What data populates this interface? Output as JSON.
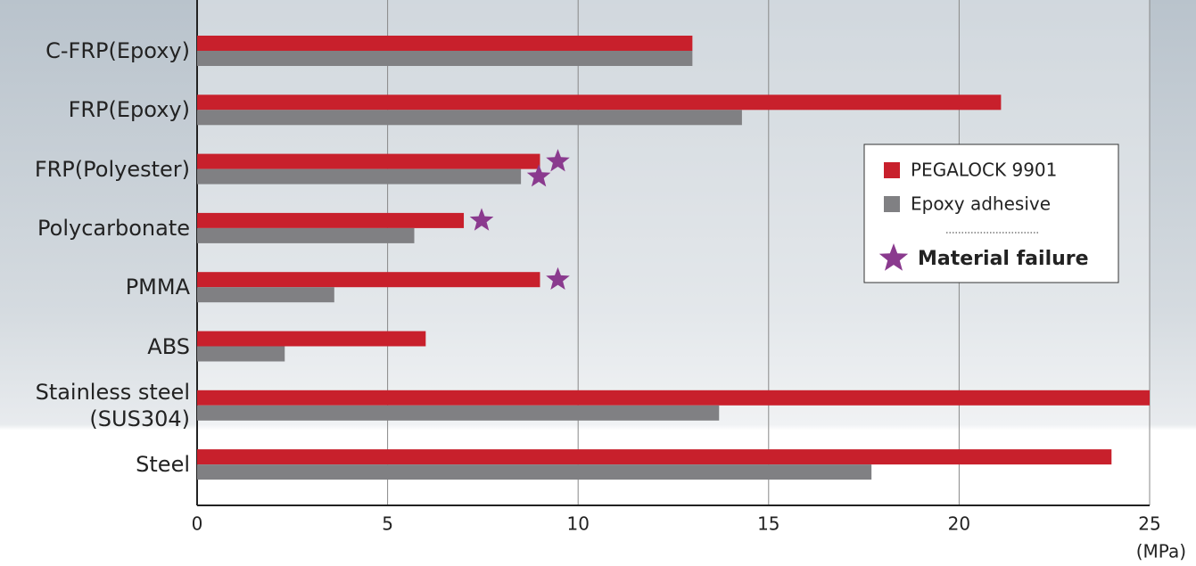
{
  "chart_data": {
    "type": "bar",
    "orientation": "horizontal",
    "categories": [
      "C-FRP(Epoxy)",
      "FRP(Epoxy)",
      "FRP(Polyester)",
      "Polycarbonate",
      "PMMA",
      "ABS",
      "Stainless steel\n(SUS304)",
      "Steel"
    ],
    "series": [
      {
        "name": "PEGALOCK 9901",
        "color": "#c8202c",
        "values": [
          13.0,
          21.1,
          9.0,
          7.0,
          9.0,
          6.0,
          25.0,
          24.0
        ],
        "material_failure": [
          false,
          false,
          true,
          true,
          true,
          false,
          false,
          false
        ]
      },
      {
        "name": "Epoxy adhesive",
        "color": "#808083",
        "values": [
          13.0,
          14.3,
          8.5,
          5.7,
          3.6,
          2.3,
          13.7,
          17.7
        ],
        "material_failure": [
          false,
          false,
          true,
          false,
          false,
          false,
          false,
          false
        ]
      }
    ],
    "failure_label": "Material failure",
    "failure_color": "#8a3a8e",
    "xlim": [
      0,
      25
    ],
    "xticks": [
      0,
      5,
      10,
      15,
      20,
      25
    ],
    "x_unit": "(MPa)",
    "grid": true
  }
}
